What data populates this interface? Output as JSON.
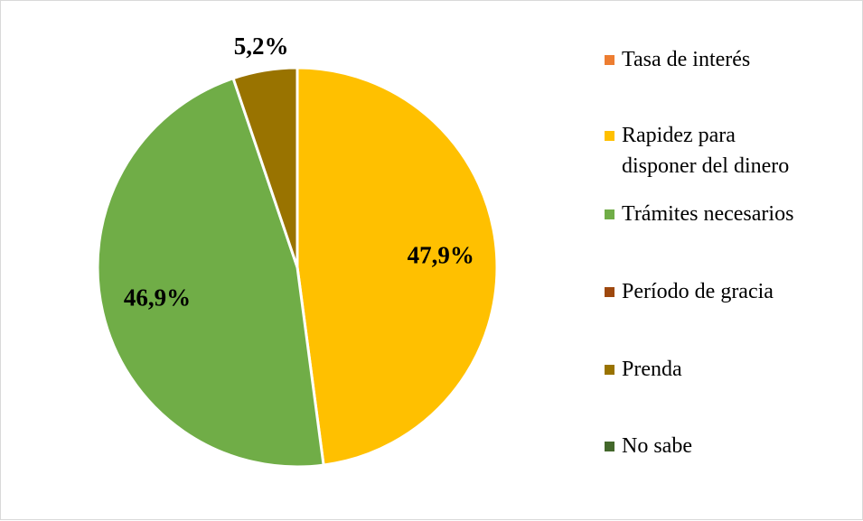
{
  "chart_data": {
    "type": "pie",
    "categories": [
      "Tasa de interés",
      "Rapidez para disponer del dinero",
      "Trámites necesarios",
      "Período de gracia",
      "Prenda",
      "No sabe"
    ],
    "values": [
      0,
      47.9,
      46.9,
      0,
      5.2,
      0
    ],
    "value_labels": [
      null,
      "47,9%",
      "46,9%",
      null,
      "5,2%",
      null
    ],
    "colors": [
      "#ed7d31",
      "#ffc000",
      "#70ad47",
      "#9e480e",
      "#997300",
      "#43682b"
    ],
    "legend": "right"
  }
}
